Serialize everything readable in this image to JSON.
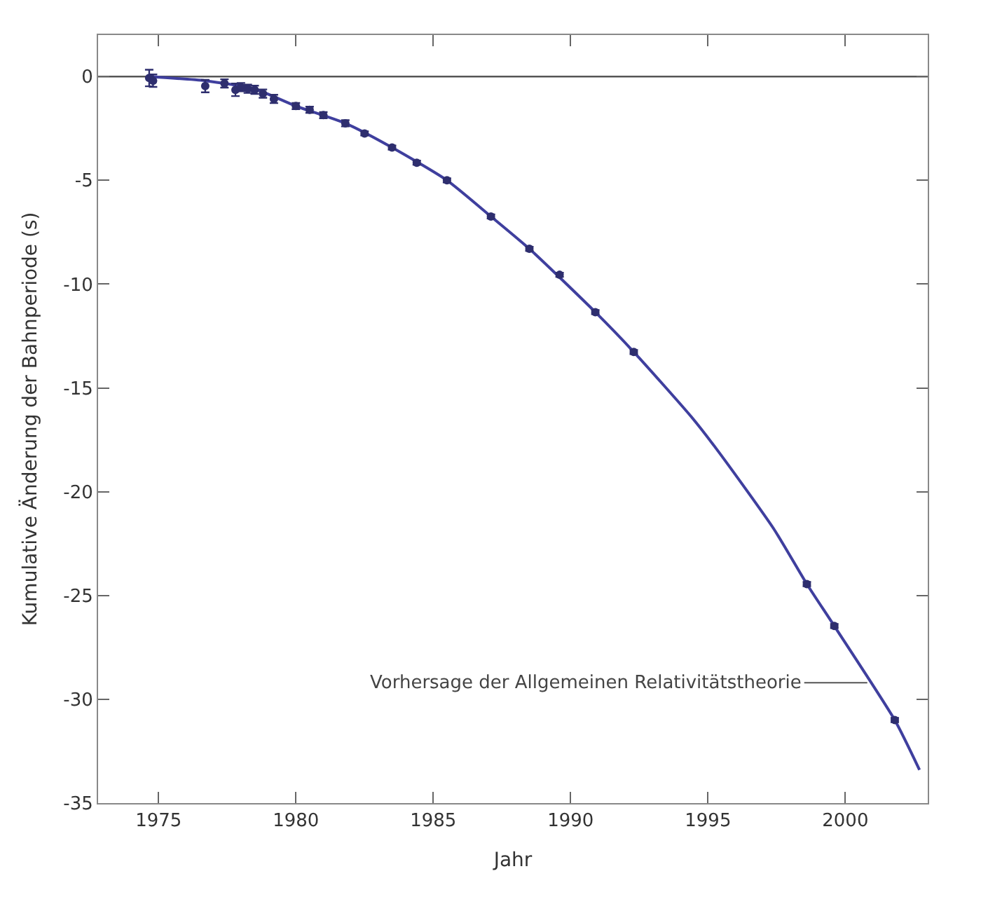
{
  "chart_data": {
    "type": "scatter",
    "xlabel": "Jahr",
    "ylabel": "Kumulative Änderung der Bahnperiode (s)",
    "xlim": [
      1972.8,
      2003
    ],
    "xticks": [
      1975,
      1980,
      1985,
      1990,
      1995,
      2000
    ],
    "ylim": [
      -35,
      2
    ],
    "yticks": [
      0,
      -5,
      -10,
      -15,
      -20,
      -25,
      -30,
      -35
    ],
    "ref_lines": [
      {
        "axis": "y",
        "value": 0,
        "color": "#555555"
      }
    ],
    "annotations": [
      {
        "text": "Vorhersage der Allgemeinen Relativitätstheorie",
        "x": 2000.8,
        "y": -29.2
      }
    ],
    "series": [
      {
        "type": "line",
        "color": "#3f3f9e",
        "line_style": "solid",
        "marker": "none",
        "x": [
          1974.6,
          1976.7,
          1978.5,
          1980.0,
          1981.8,
          1983.5,
          1985.5,
          1987.1,
          1988.5,
          1990.9,
          1992.3,
          1994.4,
          1995.4,
          1997.4,
          1998.6,
          1999.6,
          2001.8,
          2002.7
        ],
        "values": [
          0,
          -0.2,
          -0.6,
          -1.42,
          -2.25,
          -3.42,
          -5.0,
          -6.74,
          -8.3,
          -11.35,
          -13.27,
          -16.4,
          -18.1,
          -21.8,
          -24.45,
          -26.47,
          -31.0,
          -33.4
        ]
      },
      {
        "color": "#2e2e6e",
        "marker": "circle",
        "x": [
          1974.66,
          1974.8,
          1976.7,
          1977.4,
          1977.8,
          1978.0,
          1978.25,
          1978.5,
          1978.8,
          1979.2,
          1980.0,
          1980.5,
          1981.0,
          1981.8,
          1982.5,
          1983.5,
          1984.4,
          1985.5,
          1987.1,
          1988.5,
          1989.6,
          1990.9,
          1992.3,
          1998.6,
          1999.6,
          2001.8
        ],
        "values": [
          -0.07,
          -0.2,
          -0.46,
          -0.33,
          -0.64,
          -0.51,
          -0.59,
          -0.64,
          -0.82,
          -1.08,
          -1.42,
          -1.6,
          -1.86,
          -2.25,
          -2.74,
          -3.42,
          -4.15,
          -5.0,
          -6.74,
          -8.3,
          -9.55,
          -11.35,
          -13.27,
          -24.45,
          -26.47,
          -31.0
        ],
        "errors": [
          0.4,
          0.3,
          0.3,
          0.2,
          0.3,
          0.2,
          0.2,
          0.2,
          0.2,
          0.2,
          0.15,
          0.15,
          0.15,
          0.15,
          0.1,
          0.1,
          0.1,
          0.1,
          0.1,
          0.1,
          0.1,
          0.1,
          0.1,
          0.1,
          0.1,
          0.1
        ]
      }
    ]
  }
}
